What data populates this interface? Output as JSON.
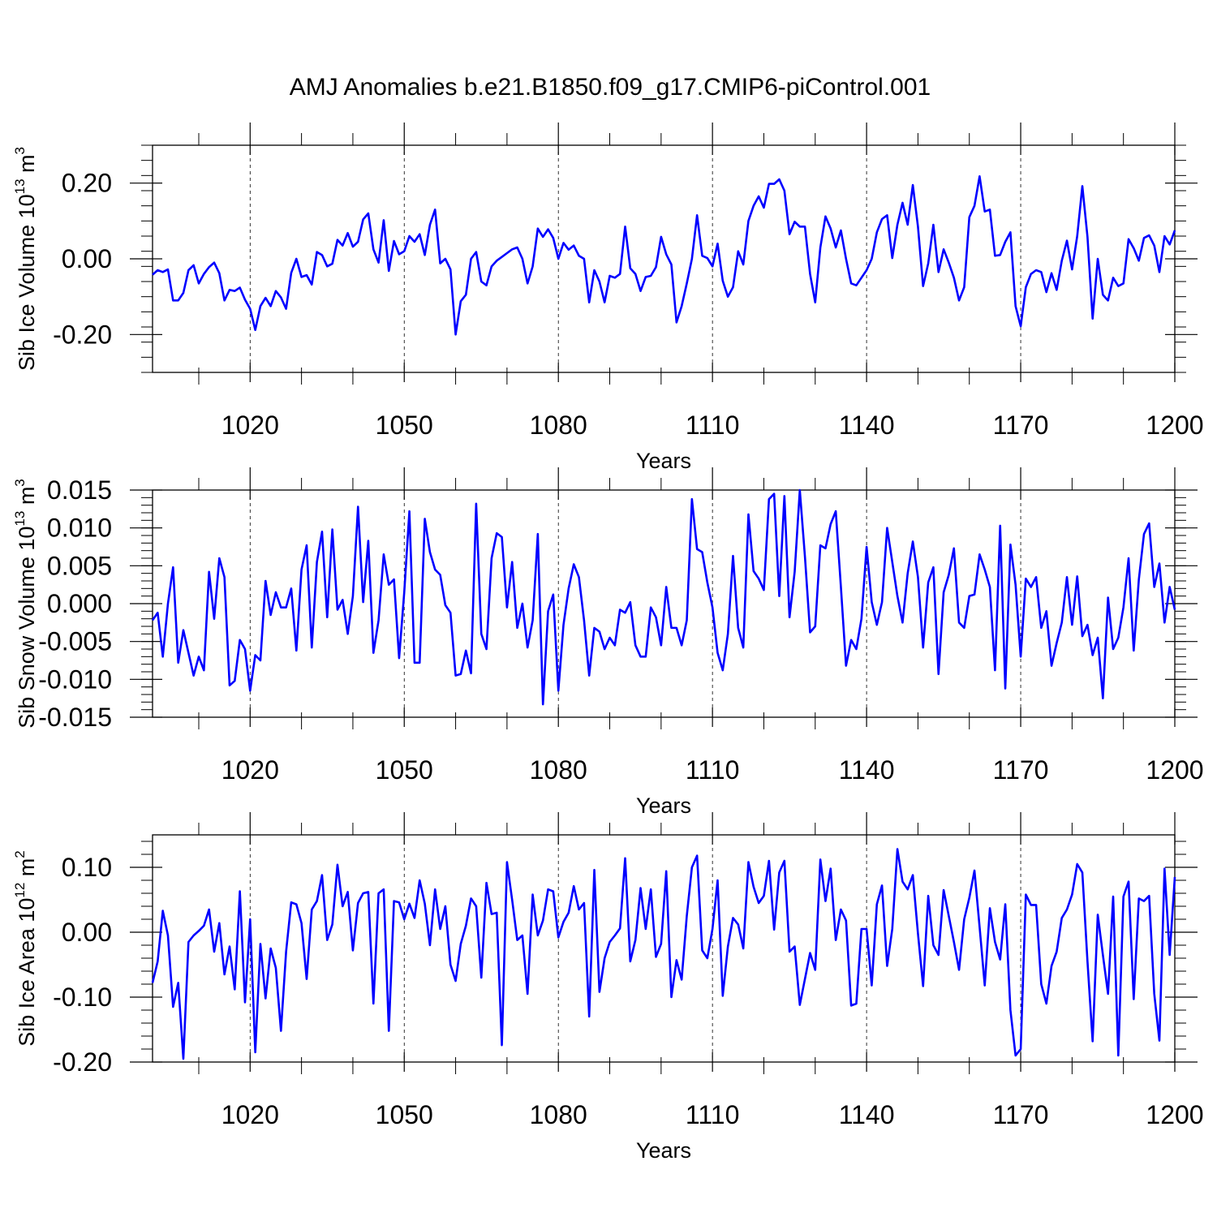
{
  "title": "AMJ Anomalies b.e21.B1850.f09_g17.CMIP6-piControl.001",
  "line_color": "#0000ff",
  "grid_years": [
    1020,
    1050,
    1080,
    1110,
    1140,
    1170
  ],
  "chart_data": [
    {
      "type": "line",
      "name": "ice-volume",
      "ylabel": {
        "text": "Sib Ice Volume 10",
        "sup1": "13",
        "mid": " m",
        "sup2": "3"
      },
      "xlabel": "Years",
      "xlim": [
        1001,
        1200
      ],
      "ylim": [
        -0.3,
        0.3
      ],
      "xticks": [
        1020,
        1050,
        1080,
        1110,
        1140,
        1170,
        1200
      ],
      "xtick_labels": [
        "1020",
        "1050",
        "1080",
        "1110",
        "1140",
        "1170",
        "1200"
      ],
      "yticks": [
        0.2,
        0.0,
        -0.2
      ],
      "ytick_labels": [
        "0.20",
        "0.00",
        "-0.20"
      ],
      "x_start": 1001,
      "values": [
        -0.042,
        -0.03,
        -0.035,
        -0.028,
        -0.11,
        -0.11,
        -0.09,
        -0.03,
        -0.017,
        -0.065,
        -0.04,
        -0.022,
        -0.01,
        -0.038,
        -0.11,
        -0.082,
        -0.085,
        -0.076,
        -0.108,
        -0.132,
        -0.188,
        -0.125,
        -0.103,
        -0.125,
        -0.085,
        -0.102,
        -0.132,
        -0.037,
        0.0,
        -0.048,
        -0.043,
        -0.068,
        0.018,
        0.01,
        -0.02,
        -0.013,
        0.05,
        0.035,
        0.068,
        0.032,
        0.045,
        0.104,
        0.12,
        0.025,
        -0.01,
        0.102,
        -0.032,
        0.047,
        0.012,
        0.02,
        0.06,
        0.045,
        0.065,
        0.01,
        0.09,
        0.13,
        -0.012,
        0.0,
        -0.028,
        -0.2,
        -0.112,
        -0.095,
        0.0,
        0.018,
        -0.06,
        -0.07,
        -0.02,
        -0.005,
        0.005,
        0.015,
        0.025,
        0.03,
        0.0,
        -0.065,
        -0.02,
        0.08,
        0.058,
        0.078,
        0.055,
        0.0,
        0.042,
        0.024,
        0.035,
        0.008,
        0.0,
        -0.115,
        -0.03,
        -0.06,
        -0.115,
        -0.045,
        -0.05,
        -0.04,
        0.085,
        -0.025,
        -0.04,
        -0.085,
        -0.048,
        -0.045,
        -0.022,
        0.058,
        0.012,
        -0.015,
        -0.168,
        -0.125,
        -0.065,
        0.0,
        0.115,
        0.008,
        0.002,
        -0.02,
        0.04,
        -0.058,
        -0.1,
        -0.075,
        0.02,
        -0.015,
        0.1,
        0.14,
        0.165,
        0.135,
        0.198,
        0.198,
        0.21,
        0.18,
        0.065,
        0.098,
        0.085,
        0.085,
        -0.04,
        -0.115,
        0.03,
        0.112,
        0.08,
        0.03,
        0.075,
        0.0,
        -0.065,
        -0.07,
        -0.05,
        -0.03,
        0.0,
        0.07,
        0.105,
        0.115,
        0.002,
        0.09,
        0.148,
        0.09,
        0.195,
        0.085,
        -0.072,
        -0.012,
        0.09,
        -0.035,
        0.025,
        -0.01,
        -0.05,
        -0.11,
        -0.075,
        0.11,
        0.14,
        0.218,
        0.125,
        0.13,
        0.008,
        0.01,
        0.045,
        0.07,
        -0.125,
        -0.178,
        -0.075,
        -0.04,
        -0.03,
        -0.035,
        -0.088,
        -0.038,
        -0.082,
        -0.005,
        0.048,
        -0.028,
        0.06,
        0.192,
        0.058,
        -0.158,
        0.0,
        -0.095,
        -0.11,
        -0.05,
        -0.072,
        -0.065,
        0.052,
        0.028,
        -0.005,
        0.055,
        0.062,
        0.035,
        -0.035,
        0.06,
        0.038,
        0.075
      ]
    },
    {
      "type": "line",
      "name": "snow-volume",
      "ylabel": {
        "text": "Sib Snow Volume 10",
        "sup1": "13",
        "mid": " m",
        "sup2": "3"
      },
      "xlabel": "Years",
      "xlim": [
        1001,
        1200
      ],
      "ylim": [
        -0.015,
        0.015
      ],
      "xticks": [
        1020,
        1050,
        1080,
        1110,
        1140,
        1170,
        1200
      ],
      "xtick_labels": [
        "1020",
        "1050",
        "1080",
        "1110",
        "1140",
        "1170",
        "1200"
      ],
      "yticks": [
        0.015,
        0.01,
        0.005,
        0.0,
        -0.005,
        -0.01,
        -0.015
      ],
      "ytick_labels": [
        "0.015",
        "0.010",
        "0.005",
        "0.000",
        "-0.005",
        "-0.010",
        "-0.015"
      ],
      "x_start": 1001,
      "values": [
        -0.0022,
        -0.0012,
        -0.007,
        0.0,
        0.0048,
        -0.0078,
        -0.0035,
        -0.0065,
        -0.0095,
        -0.007,
        -0.0088,
        0.0042,
        -0.002,
        0.006,
        0.0035,
        -0.0108,
        -0.0102,
        -0.0048,
        -0.006,
        -0.0115,
        -0.0068,
        -0.0075,
        0.003,
        -0.0015,
        0.0015,
        -0.0005,
        -0.0005,
        0.002,
        -0.0062,
        0.0045,
        0.0077,
        -0.0058,
        0.0055,
        0.0095,
        -0.0018,
        0.0098,
        -0.0008,
        0.0005,
        -0.004,
        0.001,
        0.0128,
        0.0002,
        0.0083,
        -0.0065,
        -0.0022,
        0.0065,
        0.0025,
        0.0032,
        -0.0072,
        0.0015,
        0.0122,
        -0.0078,
        -0.0078,
        0.0112,
        0.0068,
        0.0045,
        0.0038,
        -0.0002,
        -0.0012,
        -0.0095,
        -0.0093,
        -0.0062,
        -0.0092,
        0.0132,
        -0.004,
        -0.006,
        0.006,
        0.0093,
        0.0088,
        -0.0005,
        0.0055,
        -0.0032,
        0.0,
        -0.0058,
        -0.0022,
        0.0092,
        -0.0133,
        -0.001,
        0.0012,
        -0.0115,
        -0.0028,
        0.002,
        0.0052,
        0.0035,
        -0.0022,
        -0.0095,
        -0.0032,
        -0.0037,
        -0.006,
        -0.0045,
        -0.0055,
        -0.0008,
        -0.0012,
        0.0002,
        -0.0055,
        -0.007,
        -0.007,
        -0.0005,
        -0.0018,
        -0.0055,
        0.0022,
        -0.0032,
        -0.0032,
        -0.0055,
        -0.0022,
        0.0138,
        0.0072,
        0.0068,
        0.0028,
        -0.0005,
        -0.0065,
        -0.0088,
        -0.004,
        0.0063,
        -0.0032,
        -0.0058,
        0.0118,
        0.0043,
        0.0033,
        0.0018,
        0.0138,
        0.0145,
        0.001,
        0.0142,
        -0.0018,
        0.0042,
        0.015,
        0.0062,
        -0.0038,
        -0.003,
        0.0077,
        0.0073,
        0.0105,
        0.0122,
        0.0022,
        -0.0082,
        -0.0048,
        -0.006,
        -0.002,
        0.0075,
        0.0002,
        -0.0028,
        0.0002,
        0.01,
        0.0055,
        0.001,
        -0.0025,
        0.004,
        0.0082,
        0.0035,
        -0.0058,
        0.0028,
        0.0048,
        -0.0093,
        0.0015,
        0.0038,
        0.0073,
        -0.0025,
        -0.0032,
        0.001,
        0.0012,
        0.0065,
        0.0045,
        0.0022,
        -0.0088,
        0.0103,
        -0.0112,
        0.0078,
        0.0025,
        -0.007,
        0.0033,
        0.0022,
        0.0035,
        -0.0032,
        -0.001,
        -0.0082,
        -0.0052,
        -0.0025,
        0.0035,
        -0.0028,
        0.0036,
        -0.0043,
        -0.0028,
        -0.0068,
        -0.0045,
        -0.0125,
        0.0008,
        -0.006,
        -0.0045,
        -0.0005,
        0.006,
        -0.0062,
        0.0032,
        0.0092,
        0.0106,
        0.0022,
        0.0053,
        -0.0025,
        0.0022,
        -0.0008
      ]
    },
    {
      "type": "line",
      "name": "ice-area",
      "ylabel": {
        "text": "Sib Ice Area 10",
        "sup1": "12",
        "mid": " m",
        "sup2": "2"
      },
      "xlabel": "Years",
      "xlim": [
        1001,
        1200
      ],
      "ylim": [
        -0.2,
        0.15
      ],
      "xticks": [
        1020,
        1050,
        1080,
        1110,
        1140,
        1170,
        1200
      ],
      "xtick_labels": [
        "1020",
        "1050",
        "1080",
        "1110",
        "1140",
        "1170",
        "1200"
      ],
      "yticks": [
        0.1,
        0.0,
        -0.1,
        -0.2
      ],
      "ytick_labels": [
        "0.10",
        "0.00",
        "-0.10",
        "-0.20"
      ],
      "x_start": 1001,
      "values": [
        -0.078,
        -0.045,
        0.033,
        -0.005,
        -0.115,
        -0.078,
        -0.195,
        -0.015,
        -0.005,
        0.002,
        0.01,
        0.035,
        -0.03,
        0.014,
        -0.065,
        -0.022,
        -0.088,
        0.063,
        -0.108,
        0.02,
        -0.185,
        -0.018,
        -0.102,
        -0.025,
        -0.055,
        -0.152,
        -0.03,
        0.046,
        0.043,
        0.014,
        -0.072,
        0.035,
        0.048,
        0.088,
        -0.012,
        0.012,
        0.104,
        0.04,
        0.062,
        -0.028,
        0.045,
        0.06,
        0.062,
        -0.11,
        0.06,
        0.066,
        -0.152,
        0.048,
        0.046,
        0.02,
        0.044,
        0.022,
        0.08,
        0.044,
        -0.02,
        0.066,
        0.005,
        0.04,
        -0.05,
        -0.075,
        -0.018,
        0.01,
        0.052,
        0.04,
        -0.07,
        0.076,
        0.028,
        0.03,
        -0.174,
        0.108,
        0.05,
        -0.012,
        -0.005,
        -0.095,
        0.058,
        -0.005,
        0.018,
        0.066,
        0.063,
        -0.008,
        0.016,
        0.03,
        0.071,
        0.035,
        0.045,
        -0.13,
        0.096,
        -0.092,
        -0.04,
        -0.015,
        -0.005,
        0.006,
        0.114,
        -0.045,
        -0.012,
        0.068,
        0.005,
        0.066,
        -0.038,
        -0.018,
        0.094,
        -0.1,
        -0.043,
        -0.073,
        0.025,
        0.1,
        0.118,
        -0.028,
        -0.04,
        0.005,
        0.08,
        -0.098,
        -0.022,
        0.022,
        0.012,
        -0.025,
        0.108,
        0.07,
        0.045,
        0.056,
        0.11,
        0.004,
        0.092,
        0.11,
        -0.03,
        -0.022,
        -0.112,
        -0.072,
        -0.032,
        -0.058,
        0.112,
        0.048,
        0.098,
        -0.012,
        0.035,
        0.018,
        -0.113,
        -0.11,
        0.005,
        0.005,
        -0.082,
        0.043,
        0.072,
        -0.052,
        0.005,
        0.128,
        0.078,
        0.066,
        0.088,
        -0.002,
        -0.083,
        0.056,
        -0.02,
        -0.035,
        0.065,
        0.025,
        -0.015,
        -0.058,
        0.02,
        0.053,
        0.095,
        0.008,
        -0.082,
        0.037,
        -0.015,
        -0.042,
        0.043,
        -0.12,
        -0.19,
        -0.18,
        0.058,
        0.042,
        0.042,
        -0.08,
        -0.11,
        -0.052,
        -0.03,
        0.022,
        0.035,
        0.058,
        0.105,
        0.092,
        -0.045,
        -0.168,
        0.027,
        -0.035,
        -0.095,
        0.055,
        -0.19,
        0.055,
        0.078,
        -0.103,
        0.052,
        0.048,
        0.056,
        -0.095,
        -0.167,
        0.098,
        -0.035,
        0.085
      ]
    }
  ]
}
